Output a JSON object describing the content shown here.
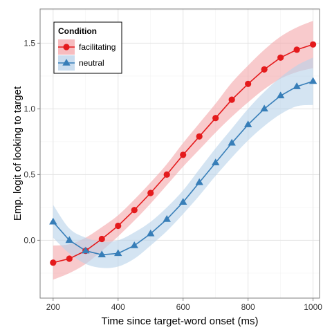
{
  "chart_data": {
    "type": "line",
    "xlabel": "Time since target-word onset (ms)",
    "ylabel": "Emp. logit of looking to target",
    "xlim": [
      160,
      1020
    ],
    "ylim": [
      -0.44,
      1.76
    ],
    "xticks": [
      "200",
      "400",
      "600",
      "800",
      "1000"
    ],
    "yticks": [
      "0.0",
      "0.5",
      "1.0",
      "1.5"
    ],
    "grid": true,
    "legend": {
      "title": "Condition",
      "position": "top-left"
    },
    "x": [
      200,
      250,
      300,
      350,
      400,
      450,
      500,
      550,
      600,
      650,
      700,
      750,
      800,
      850,
      900,
      950,
      1000
    ],
    "series": [
      {
        "name": "facilitating",
        "color": "#e41a1c",
        "band_color": "#f4a6aa",
        "marker": "circle",
        "values": [
          -0.17,
          -0.14,
          -0.08,
          0.01,
          0.11,
          0.23,
          0.36,
          0.5,
          0.65,
          0.79,
          0.93,
          1.07,
          1.19,
          1.3,
          1.39,
          1.45,
          1.49
        ],
        "band_lower": [
          -0.3,
          -0.25,
          -0.18,
          -0.08,
          0.03,
          0.15,
          0.28,
          0.42,
          0.56,
          0.69,
          0.82,
          0.94,
          1.05,
          1.15,
          1.23,
          1.28,
          1.31
        ],
        "band_upper": [
          -0.04,
          -0.03,
          0.02,
          0.1,
          0.19,
          0.31,
          0.44,
          0.58,
          0.74,
          0.89,
          1.04,
          1.2,
          1.33,
          1.45,
          1.55,
          1.62,
          1.67
        ]
      },
      {
        "name": "neutral",
        "color": "#377eb8",
        "band_color": "#b8d2ea",
        "marker": "triangle",
        "values": [
          0.14,
          0.0,
          -0.08,
          -0.11,
          -0.1,
          -0.04,
          0.05,
          0.16,
          0.29,
          0.44,
          0.59,
          0.74,
          0.88,
          1.0,
          1.1,
          1.17,
          1.21
        ],
        "band_lower": [
          0.02,
          -0.1,
          -0.18,
          -0.21,
          -0.2,
          -0.14,
          -0.04,
          0.07,
          0.2,
          0.34,
          0.49,
          0.63,
          0.76,
          0.87,
          0.96,
          1.02,
          1.03
        ],
        "band_upper": [
          0.27,
          0.09,
          0.02,
          -0.01,
          0.0,
          0.06,
          0.14,
          0.25,
          0.38,
          0.54,
          0.7,
          0.85,
          1.0,
          1.13,
          1.24,
          1.33,
          1.39
        ]
      }
    ]
  }
}
